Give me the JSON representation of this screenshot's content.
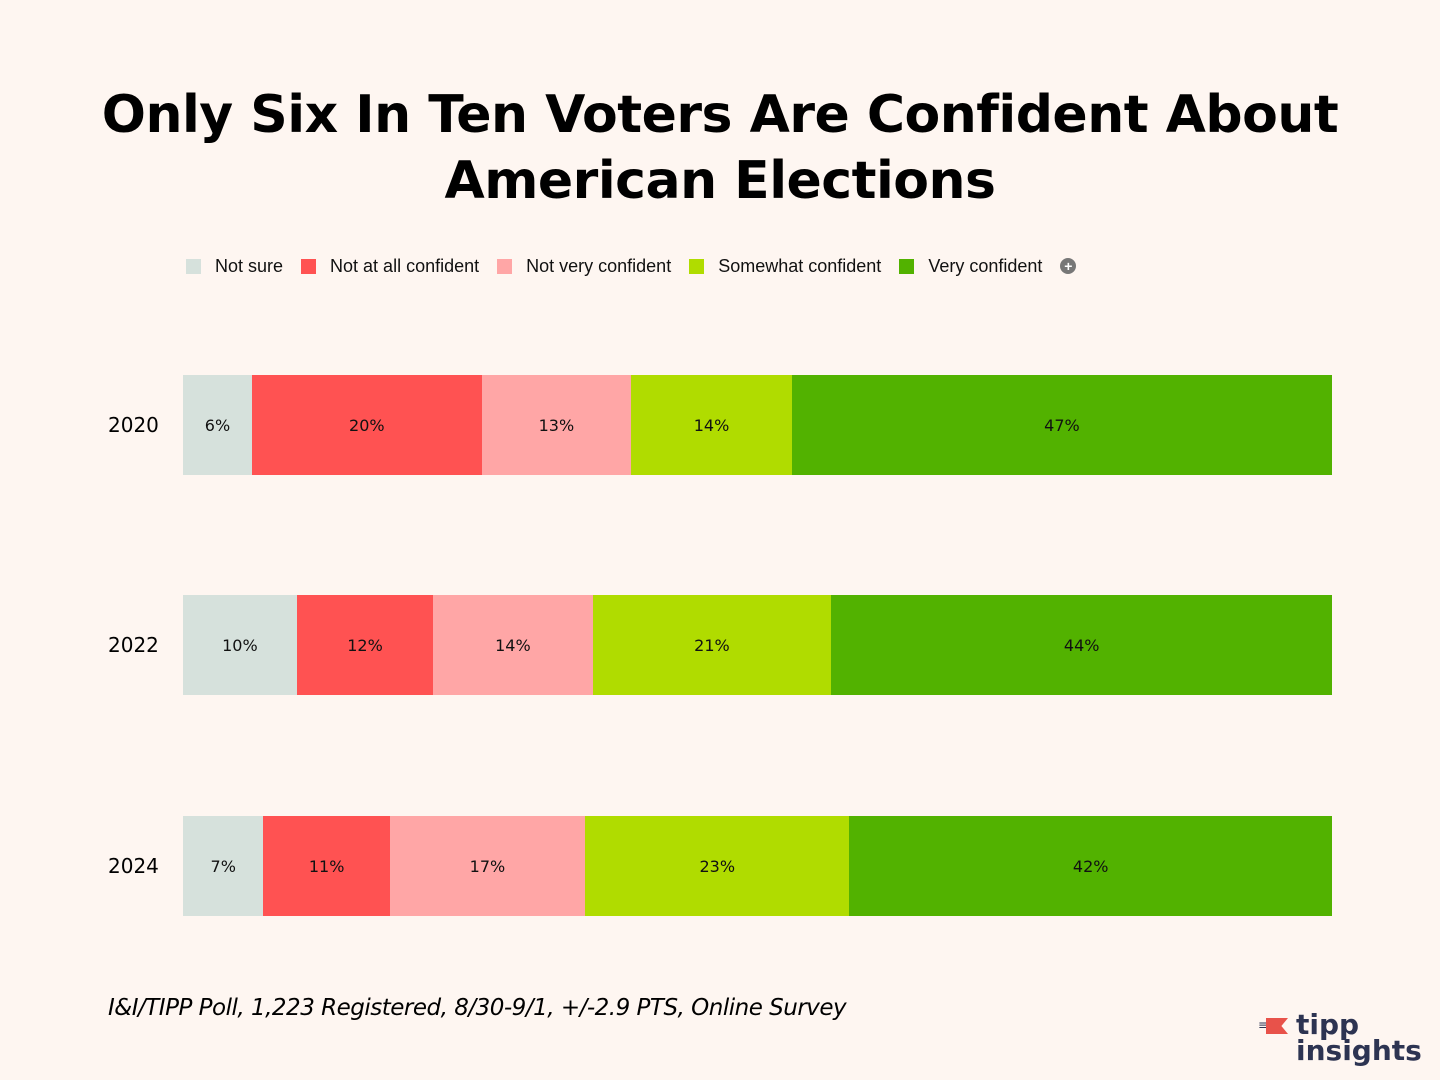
{
  "chart_data": {
    "type": "bar",
    "orientation": "horizontal",
    "stacked": true,
    "normalized": true,
    "title": "Only Six In Ten Voters Are Confident About American Elections",
    "title_lines": [
      "Only Six In Ten Voters Are Confident About",
      "American Elections"
    ],
    "categories": [
      "2020",
      "2022",
      "2024"
    ],
    "series": [
      {
        "name": "Not sure",
        "color": "#d6e1dc",
        "values": [
          6,
          10,
          7
        ]
      },
      {
        "name": "Not at all confident",
        "color": "#ff5252",
        "values": [
          20,
          12,
          11
        ]
      },
      {
        "name": "Not very confident",
        "color": "#ffa6a6",
        "values": [
          13,
          14,
          17
        ]
      },
      {
        "name": "Somewhat confident",
        "color": "#b0dc00",
        "values": [
          14,
          21,
          23
        ]
      },
      {
        "name": "Very confident",
        "color": "#52b200",
        "values": [
          47,
          44,
          42
        ]
      }
    ],
    "value_suffix": "%",
    "xlabel": "",
    "ylabel": "",
    "grid": false,
    "legend_position": "top"
  },
  "footer": {
    "source": "I&I/TIPP Poll, 1,223 Registered, 8/30-9/1, +/-2.9 PTS, Online Survey"
  },
  "logo": {
    "line1": "tipp",
    "line2": "insights",
    "accent": "#e8524a",
    "text_color": "#2d3452"
  },
  "legend_more_icon": "plus-circle-icon"
}
